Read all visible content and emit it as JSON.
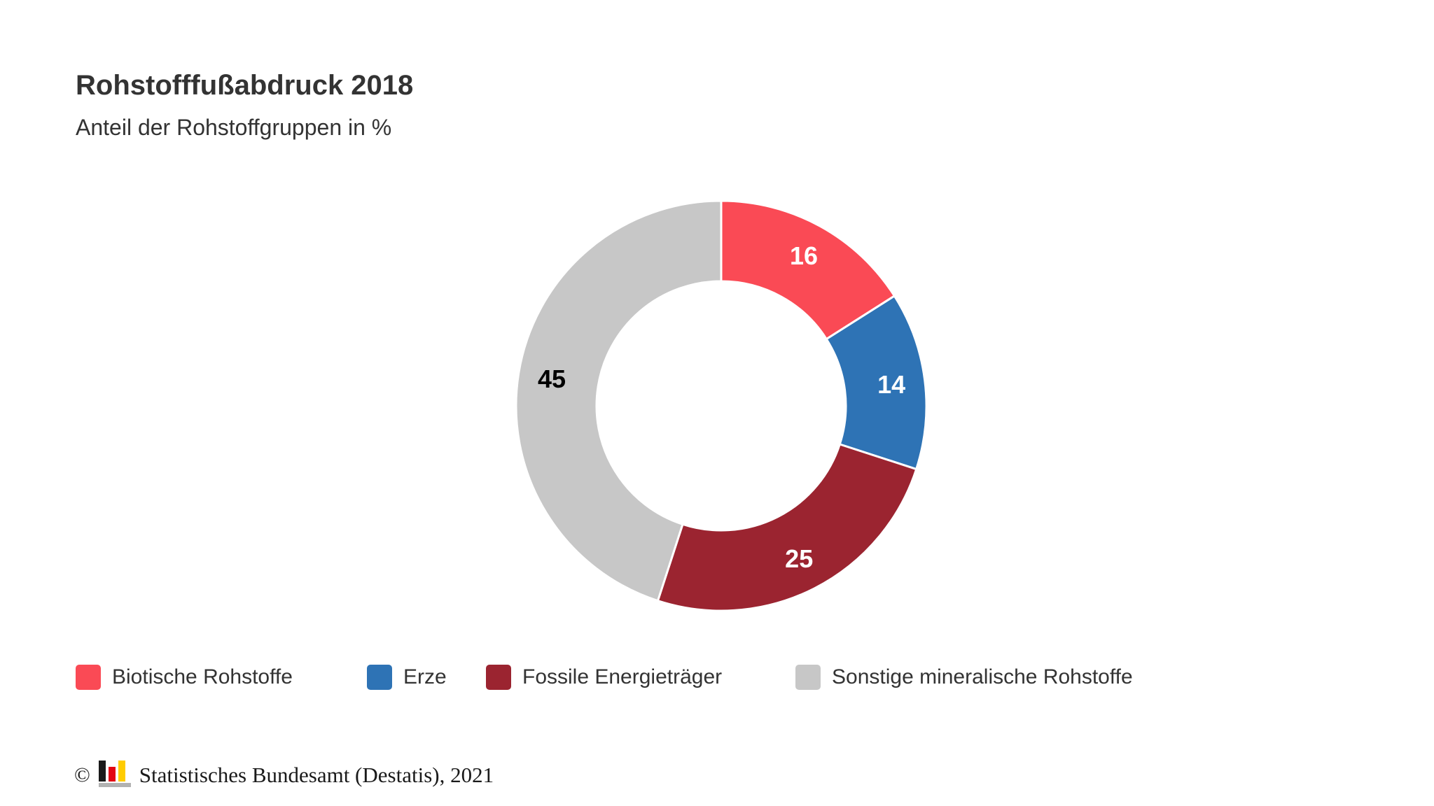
{
  "header": {
    "title": "Rohstofffußabdruck 2018",
    "subtitle": "Anteil der Rohstoffgruppen in %"
  },
  "chart_data": {
    "type": "pie",
    "subtype": "donut",
    "title": "Rohstofffußabdruck 2018",
    "subtitle": "Anteil der Rohstoffgruppen in %",
    "unit": "%",
    "start_angle_deg": 0,
    "clockwise": true,
    "legend_position": "bottom",
    "slice_separator_color": "#ffffff",
    "slices": [
      {
        "label": "Biotische Rohstoffe",
        "value": 16,
        "color": "#FA4A55",
        "value_label_color": "#FFFFFF"
      },
      {
        "label": "Erze",
        "value": 14,
        "color": "#2E73B5",
        "value_label_color": "#FFFFFF"
      },
      {
        "label": "Fossile Energieträger",
        "value": 25,
        "color": "#9B2430",
        "value_label_color": "#FFFFFF"
      },
      {
        "label": "Sonstige mineralische Rohstoffe",
        "value": 45,
        "color": "#C7C7C7",
        "value_label_color": "#000000"
      }
    ]
  },
  "footer": {
    "copyright_symbol": "©",
    "text": "Statistisches Bundesamt (Destatis), 2021",
    "logo": {
      "name": "destatis-bar-chart-logo",
      "bar_black": "#1A1A1A",
      "bar_red": "#E30613",
      "bar_gold": "#FFCC00",
      "base_bar": "#B2B2B2"
    }
  }
}
